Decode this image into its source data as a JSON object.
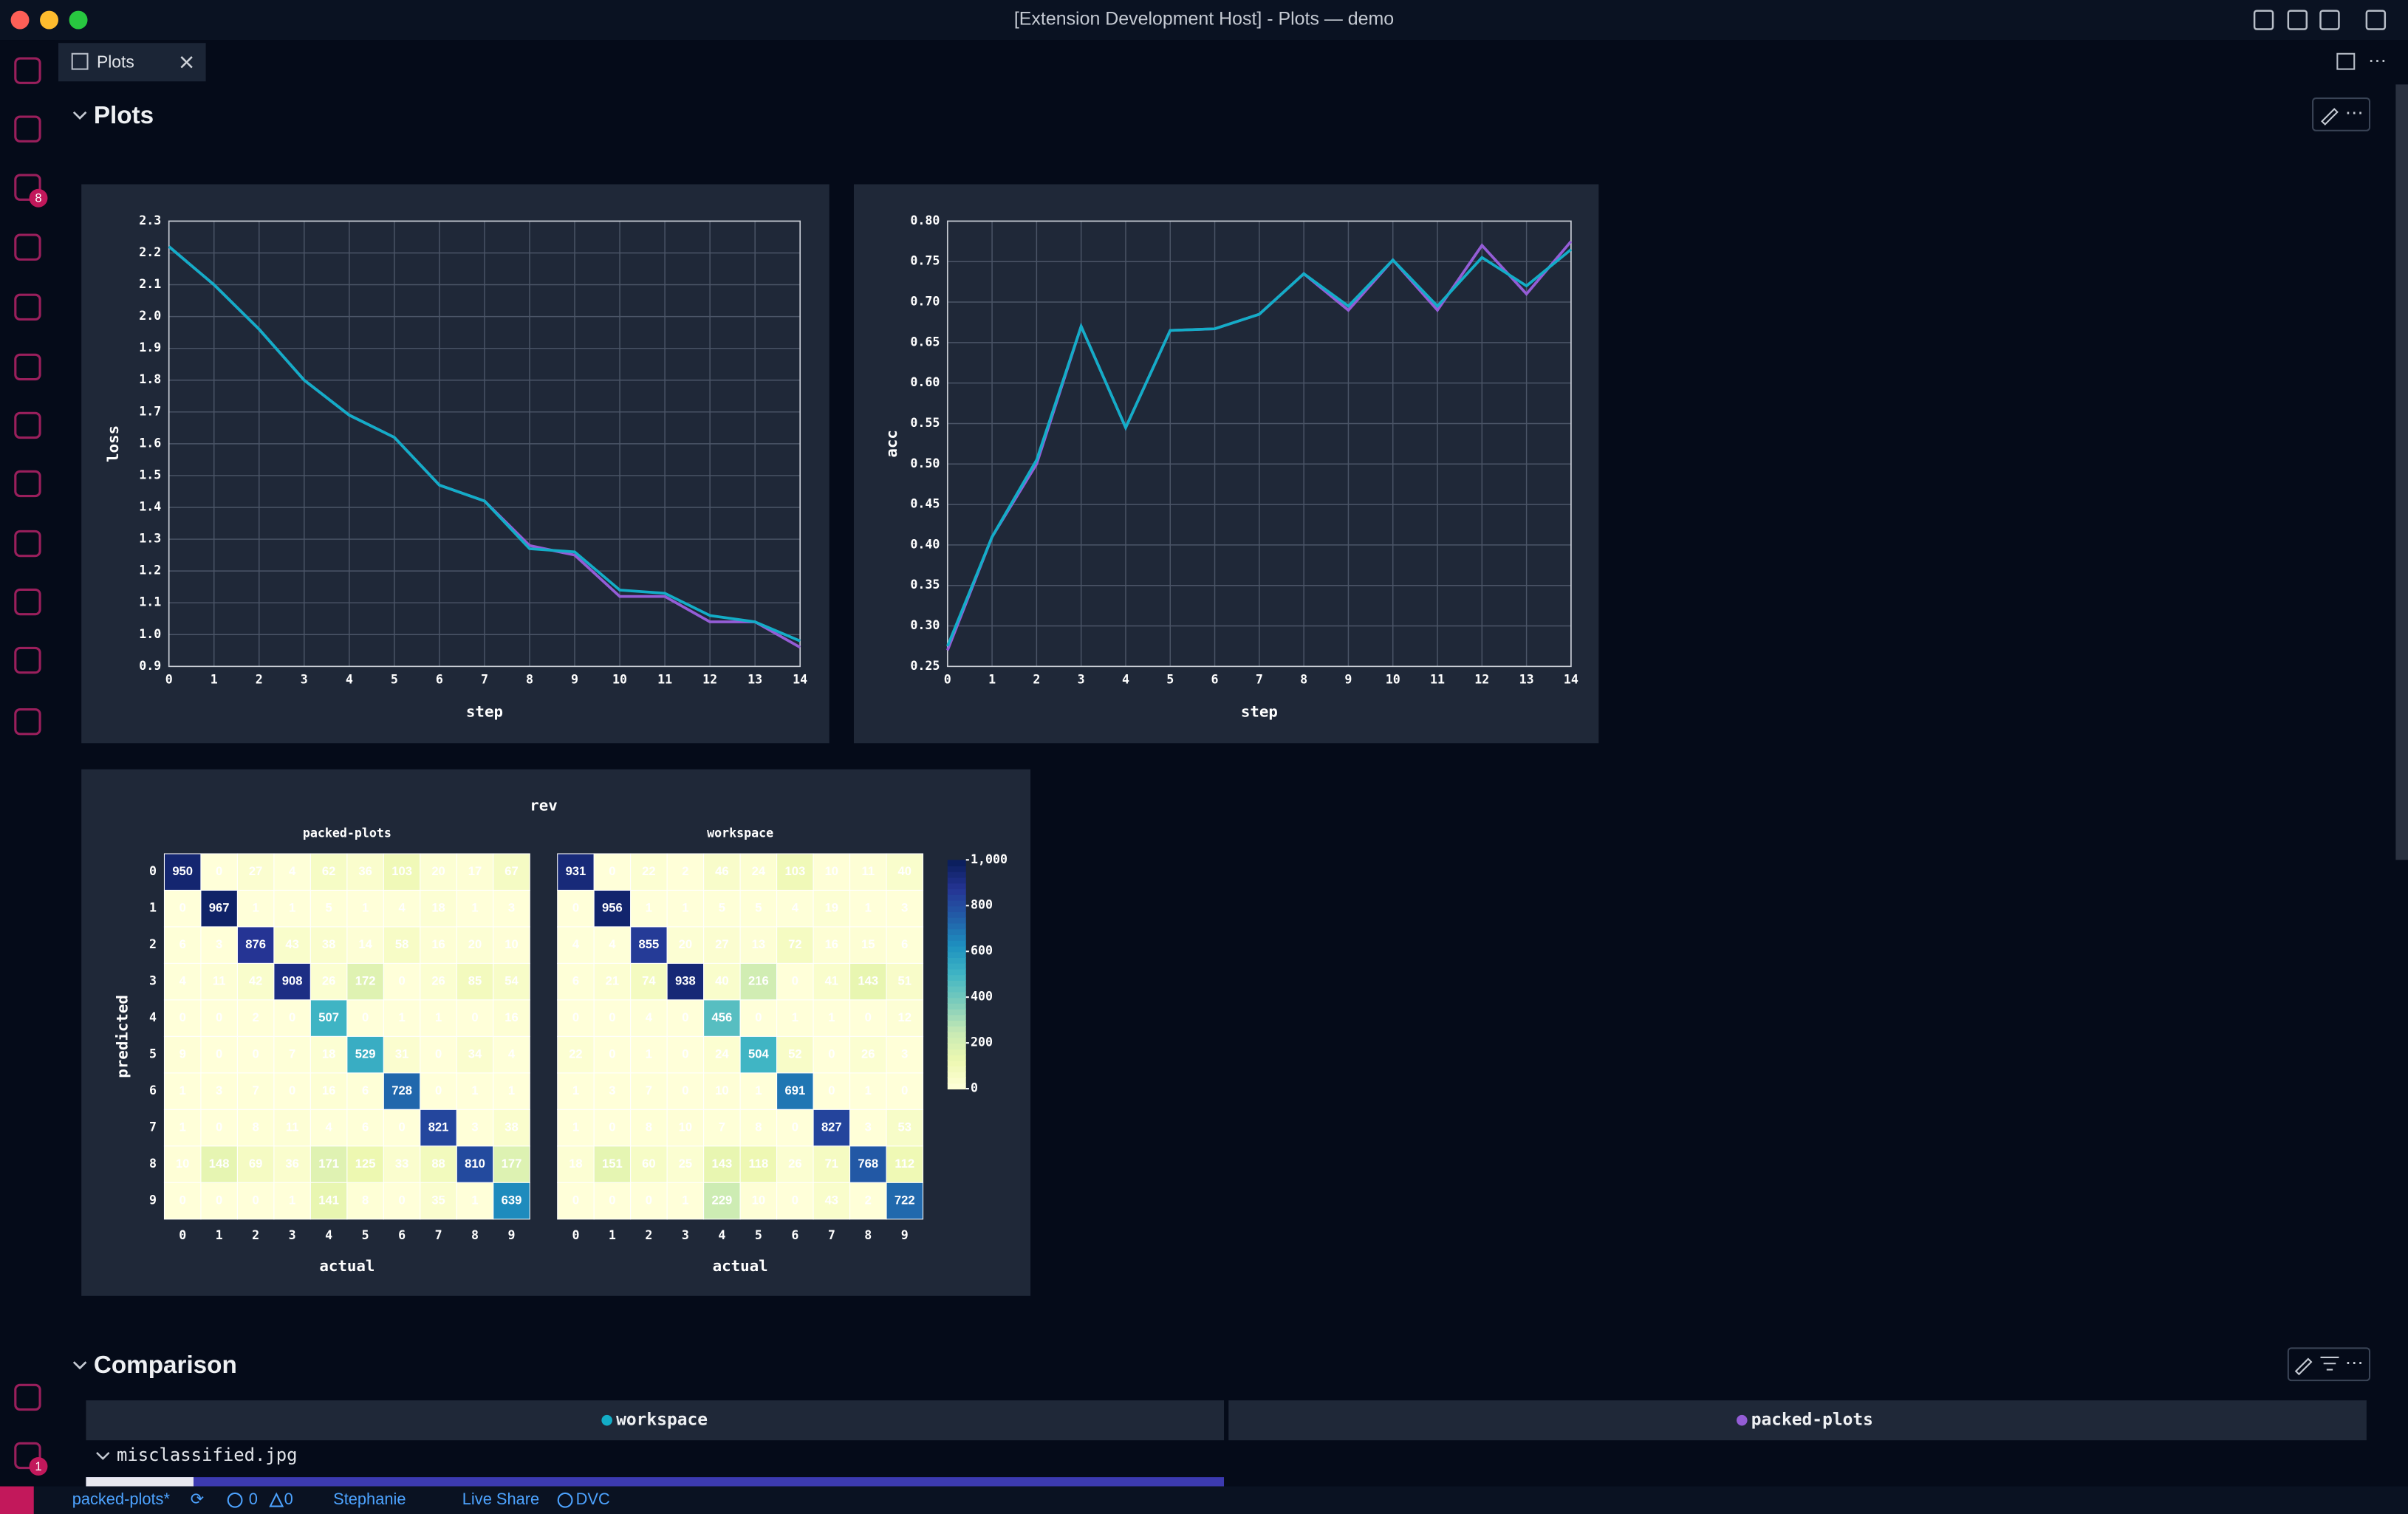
{
  "window": {
    "title": "[Extension Development Host] - Plots — demo"
  },
  "activity_badges": [
    "8",
    "1"
  ],
  "tab": {
    "label": "Plots"
  },
  "plots_section": {
    "title": "Plots",
    "charts": [
      {
        "type": "line",
        "xlabel": "step",
        "ylabel": "loss",
        "x": [
          0,
          1,
          2,
          3,
          4,
          5,
          6,
          7,
          8,
          9,
          10,
          11,
          12,
          13,
          14
        ],
        "xlim": [
          0,
          14
        ],
        "xticks": [
          0,
          1,
          2,
          3,
          4,
          5,
          6,
          7,
          8,
          9,
          10,
          11,
          12,
          13,
          14
        ],
        "ylim": [
          0.9,
          2.3
        ],
        "yticks": [
          0.9,
          {
            "value": 1,
            "label": "1.0"
          },
          1.1,
          1.2,
          1.3,
          1.4,
          1.5,
          1.6,
          1.7,
          1.8,
          1.9,
          {
            "value": 2,
            "label": "2.0"
          },
          2.1,
          2.2,
          2.3
        ],
        "grid": true,
        "series": [
          {
            "color": "#945dd6",
            "values": [
              2.22,
              2.1,
              1.96,
              1.8,
              1.69,
              1.62,
              1.47,
              1.42,
              1.28,
              1.25,
              1.12,
              1.12,
              1.04,
              1.04,
              0.96
            ]
          },
          {
            "color": "#13adc7",
            "values": [
              2.22,
              2.1,
              1.96,
              1.8,
              1.69,
              1.62,
              1.47,
              1.42,
              1.27,
              1.26,
              1.14,
              1.13,
              1.06,
              1.04,
              0.98
            ]
          }
        ]
      },
      {
        "type": "line",
        "xlabel": "step",
        "ylabel": "acc",
        "x": [
          0,
          1,
          2,
          3,
          4,
          5,
          6,
          7,
          8,
          9,
          10,
          11,
          12,
          13,
          14
        ],
        "xlim": [
          0,
          14
        ],
        "xticks": [
          0,
          1,
          2,
          3,
          4,
          5,
          6,
          7,
          8,
          9,
          10,
          11,
          12,
          13,
          14
        ],
        "ylim": [
          0.25,
          0.8
        ],
        "yticks": [
          0.25,
          {
            "value": 0.3,
            "label": "0.30"
          },
          0.35,
          {
            "value": 0.4,
            "label": "0.40"
          },
          0.45,
          {
            "value": 0.5,
            "label": "0.50"
          },
          0.55,
          {
            "value": 0.6,
            "label": "0.60"
          },
          0.65,
          {
            "value": 0.7,
            "label": "0.70"
          },
          0.75,
          {
            "value": 0.8,
            "label": "0.80"
          }
        ],
        "grid": true,
        "series": [
          {
            "color": "#945dd6",
            "values": [
              0.27,
              0.41,
              0.5,
              0.67,
              0.545,
              0.665,
              0.667,
              0.685,
              0.735,
              0.69,
              0.752,
              0.69,
              0.77,
              0.71,
              0.775
            ]
          },
          {
            "color": "#13adc7",
            "values": [
              0.275,
              0.41,
              0.505,
              0.67,
              0.545,
              0.665,
              0.667,
              0.685,
              0.735,
              0.695,
              0.752,
              0.695,
              0.755,
              0.72,
              0.765
            ]
          }
        ]
      }
    ],
    "confusion": {
      "type": "heatmap",
      "title": "rev",
      "xlabel": "actual",
      "ylabel": "predicted",
      "classes": [
        0,
        1,
        2,
        3,
        4,
        5,
        6,
        7,
        8,
        9
      ],
      "panels": [
        {
          "name": "packed-plots",
          "matrix": [
            [
              950,
              0,
              27,
              4,
              62,
              36,
              103,
              20,
              17,
              67
            ],
            [
              0,
              967,
              1,
              1,
              5,
              1,
              4,
              18,
              1,
              3
            ],
            [
              6,
              3,
              876,
              43,
              38,
              14,
              58,
              16,
              20,
              10
            ],
            [
              4,
              11,
              42,
              908,
              26,
              172,
              0,
              26,
              85,
              54
            ],
            [
              0,
              0,
              2,
              0,
              507,
              0,
              1,
              1,
              0,
              16
            ],
            [
              9,
              0,
              0,
              7,
              18,
              529,
              31,
              0,
              34,
              4
            ],
            [
              1,
              3,
              7,
              0,
              16,
              6,
              728,
              0,
              1,
              1
            ],
            [
              1,
              0,
              8,
              11,
              4,
              6,
              0,
              821,
              3,
              38
            ],
            [
              10,
              148,
              69,
              36,
              171,
              125,
              33,
              88,
              810,
              177
            ],
            [
              0,
              0,
              0,
              1,
              141,
              8,
              0,
              35,
              1,
              639
            ]
          ]
        },
        {
          "name": "workspace",
          "matrix": [
            [
              931,
              0,
              22,
              2,
              46,
              24,
              103,
              10,
              11,
              40
            ],
            [
              0,
              956,
              1,
              1,
              5,
              5,
              4,
              19,
              1,
              3
            ],
            [
              4,
              4,
              855,
              20,
              27,
              13,
              72,
              16,
              15,
              6
            ],
            [
              6,
              21,
              74,
              938,
              40,
              216,
              0,
              41,
              143,
              51
            ],
            [
              0,
              0,
              4,
              0,
              456,
              0,
              1,
              1,
              0,
              12
            ],
            [
              22,
              0,
              1,
              0,
              24,
              504,
              52,
              0,
              26,
              3
            ],
            [
              1,
              3,
              7,
              0,
              10,
              1,
              691,
              0,
              1,
              0
            ],
            [
              1,
              0,
              8,
              10,
              7,
              8,
              0,
              827,
              3,
              53
            ],
            [
              18,
              151,
              60,
              25,
              143,
              118,
              26,
              71,
              768,
              112
            ],
            [
              0,
              0,
              0,
              1,
              229,
              10,
              0,
              43,
              2,
              722
            ]
          ]
        }
      ],
      "colorbar": {
        "lim": [
          0,
          1000
        ],
        "ticks": [
          0,
          200,
          400,
          600,
          800,
          {
            "value": 1000,
            "label": "1,000"
          }
        ]
      }
    }
  },
  "comparison": {
    "title": "Comparison",
    "columns": [
      "workspace",
      "packed-plots"
    ],
    "column_colors": [
      "#13adc7",
      "#945dd6"
    ],
    "row_label": "misclassified.jpg"
  },
  "status_bar": {
    "branch": "packed-plots*",
    "errors": 0,
    "warnings": 0,
    "user": "Stephanie",
    "live_share": "Live Share",
    "dvc": "DVC"
  }
}
